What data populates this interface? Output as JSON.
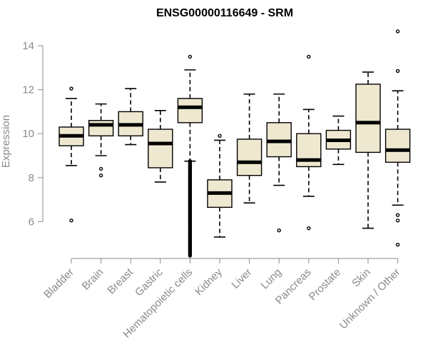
{
  "chart_data": {
    "type": "boxplot",
    "title": "ENSG00000116649 - SRM",
    "ylabel": "Expression",
    "xlabel": "",
    "ylim": [
      4.4,
      14.9
    ],
    "yticks": [
      6,
      8,
      10,
      12,
      14
    ],
    "colors": {
      "box_fill": "#efe8d1",
      "stroke": "#000000",
      "axis": "#8a8a8a"
    },
    "categories": [
      "Bladder",
      "Brain",
      "Breast",
      "Gastric",
      "Hematopoietic cells",
      "Kidney",
      "Liver",
      "Lung",
      "Pancreas",
      "Prostate",
      "Skin",
      "Unknown / Other"
    ],
    "boxes": [
      {
        "category": "Bladder",
        "whislo": 8.55,
        "q1": 9.45,
        "med": 9.9,
        "q3": 10.3,
        "whishi": 11.6,
        "fliers": [
          12.05,
          6.05
        ]
      },
      {
        "category": "Brain",
        "whislo": 9.0,
        "q1": 9.9,
        "med": 10.4,
        "q3": 10.6,
        "whishi": 11.35,
        "fliers": [
          8.4,
          8.1
        ]
      },
      {
        "category": "Breast",
        "whislo": 9.5,
        "q1": 9.9,
        "med": 10.4,
        "q3": 11.0,
        "whishi": 12.05,
        "fliers": []
      },
      {
        "category": "Gastric",
        "whislo": 7.8,
        "q1": 8.45,
        "med": 9.55,
        "q3": 10.2,
        "whishi": 11.05,
        "fliers": []
      },
      {
        "category": "Hematopoietic cells",
        "whislo": 8.75,
        "q1": 10.5,
        "med": 11.2,
        "q3": 11.6,
        "whishi": 12.9,
        "fliers": [
          13.5
        ],
        "flier_band": [
          4.45,
          8.75
        ]
      },
      {
        "category": "Kidney",
        "whislo": 5.3,
        "q1": 6.65,
        "med": 7.3,
        "q3": 7.9,
        "whishi": 9.7,
        "fliers": [
          9.9
        ]
      },
      {
        "category": "Liver",
        "whislo": 6.85,
        "q1": 8.1,
        "med": 8.7,
        "q3": 9.75,
        "whishi": 11.8,
        "fliers": []
      },
      {
        "category": "Lung",
        "whislo": 7.65,
        "q1": 8.95,
        "med": 9.65,
        "q3": 10.5,
        "whishi": 11.8,
        "fliers": [
          5.6
        ]
      },
      {
        "category": "Pancreas",
        "whislo": 7.15,
        "q1": 8.5,
        "med": 8.8,
        "q3": 10.0,
        "whishi": 11.1,
        "fliers": [
          13.5,
          5.7
        ]
      },
      {
        "category": "Prostate",
        "whislo": 8.6,
        "q1": 9.3,
        "med": 9.7,
        "q3": 10.15,
        "whishi": 10.8,
        "fliers": []
      },
      {
        "category": "Skin",
        "whislo": 5.7,
        "q1": 9.15,
        "med": 10.5,
        "q3": 12.25,
        "whishi": 12.8,
        "fliers": []
      },
      {
        "category": "Unknown / Other",
        "whislo": 6.75,
        "q1": 8.7,
        "med": 9.25,
        "q3": 10.2,
        "whishi": 11.95,
        "fliers": [
          14.65,
          12.85,
          6.3,
          6.05,
          4.95
        ]
      }
    ]
  }
}
